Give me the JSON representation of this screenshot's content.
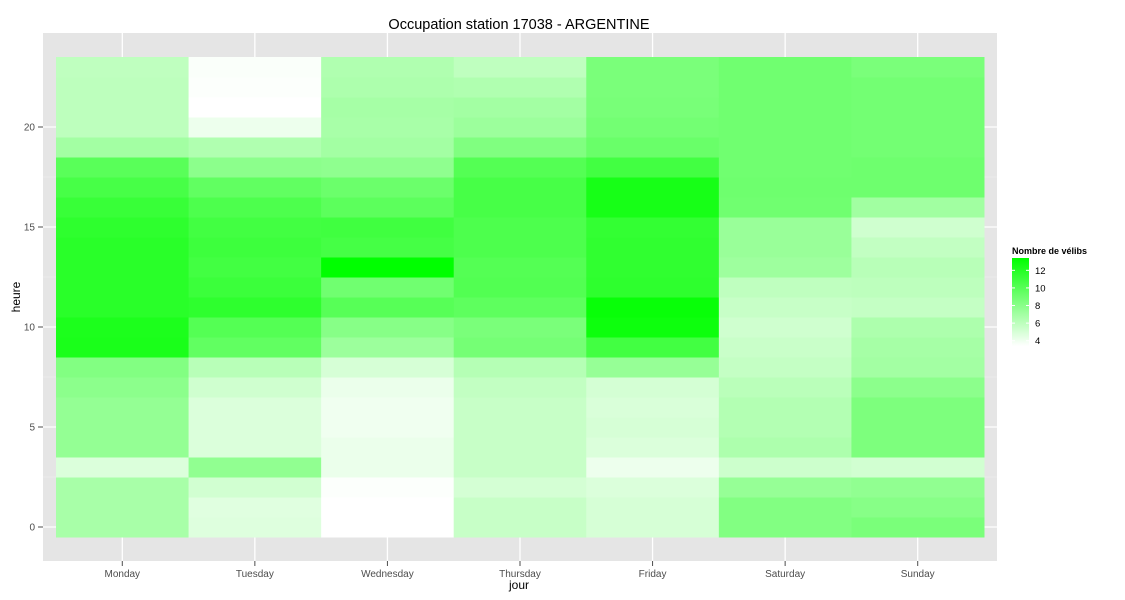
{
  "chart_data": {
    "type": "heatmap",
    "title": "Occupation station 17038 - ARGENTINE",
    "xlabel": "jour",
    "ylabel": "heure",
    "x_categories": [
      "Monday",
      "Tuesday",
      "Wednesday",
      "Thursday",
      "Friday",
      "Saturday",
      "Sunday"
    ],
    "y_range": [
      0,
      23
    ],
    "y_ticks": [
      0,
      5,
      10,
      15,
      20
    ],
    "grid": true,
    "legend": {
      "title": "Nombre de vélibs",
      "placement": "right",
      "min": 3.4,
      "max": 13.4,
      "ticks": [
        4,
        6,
        8,
        10,
        12
      ],
      "low_color": "#ffffff",
      "high_color": "#00ff00"
    },
    "values": [
      [
        6.8,
        4.7,
        3.4,
        5.6,
        5.0,
        8.3,
        8.6
      ],
      [
        6.8,
        4.6,
        3.4,
        5.6,
        5.0,
        8.3,
        8.1
      ],
      [
        6.8,
        5.2,
        3.5,
        5.1,
        4.8,
        7.5,
        7.7
      ],
      [
        4.8,
        7.7,
        4.2,
        5.6,
        4.1,
        5.4,
        5.2
      ],
      [
        7.6,
        4.8,
        4.2,
        5.6,
        4.8,
        6.6,
        8.5
      ],
      [
        7.6,
        4.8,
        4.0,
        5.6,
        5.0,
        6.4,
        8.5
      ],
      [
        7.6,
        4.8,
        4.0,
        5.6,
        4.9,
        6.4,
        8.5
      ],
      [
        7.9,
        5.3,
        4.2,
        5.8,
        5.1,
        6.1,
        7.9
      ],
      [
        8.3,
        6.2,
        5.0,
        6.3,
        7.5,
        5.7,
        7.0
      ],
      [
        12.4,
        9.6,
        7.3,
        8.8,
        10.8,
        5.5,
        6.9
      ],
      [
        12.3,
        10.1,
        8.1,
        8.6,
        12.9,
        5.3,
        6.6
      ],
      [
        11.8,
        11.6,
        10.0,
        9.7,
        13.1,
        5.6,
        5.7
      ],
      [
        11.8,
        11.1,
        9.0,
        10.2,
        11.6,
        5.9,
        6.0
      ],
      [
        11.8,
        10.8,
        13.4,
        10.1,
        11.5,
        7.2,
        6.2
      ],
      [
        11.8,
        11.0,
        10.7,
        10.4,
        11.5,
        7.4,
        5.8
      ],
      [
        11.6,
        10.8,
        10.9,
        10.4,
        11.4,
        7.4,
        5.3
      ],
      [
        11.2,
        10.4,
        9.8,
        10.6,
        12.5,
        9.0,
        7.1
      ],
      [
        10.6,
        9.6,
        9.2,
        10.6,
        12.5,
        9.1,
        9.1
      ],
      [
        9.9,
        7.9,
        7.8,
        10.1,
        10.8,
        9.0,
        9.1
      ],
      [
        7.0,
        6.5,
        7.0,
        8.4,
        9.3,
        9.0,
        8.9
      ],
      [
        6.0,
        4.1,
        6.8,
        7.3,
        8.9,
        9.0,
        8.9
      ],
      [
        6.0,
        3.4,
        6.9,
        7.0,
        8.7,
        9.0,
        8.9
      ],
      [
        6.0,
        3.5,
        6.6,
        6.5,
        8.6,
        9.0,
        8.9
      ],
      [
        5.9,
        3.6,
        6.5,
        5.9,
        8.6,
        9.0,
        8.6
      ]
    ]
  }
}
